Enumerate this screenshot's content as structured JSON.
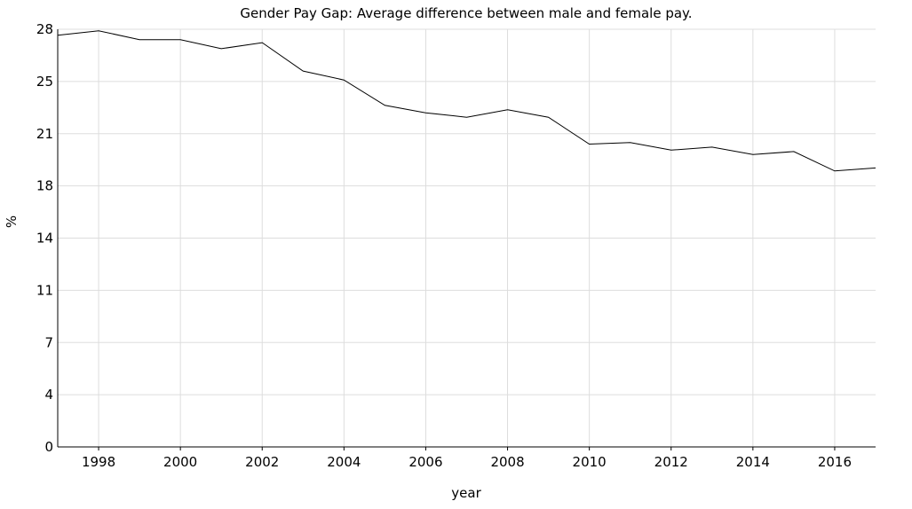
{
  "chart_data": {
    "type": "line",
    "title": "Gender Pay Gap: Average difference between male and female pay.",
    "xlabel": "year",
    "ylabel": "%",
    "xlim": [
      1997,
      2017
    ],
    "ylim": [
      0,
      28
    ],
    "x_ticks": [
      1998,
      2000,
      2002,
      2004,
      2006,
      2008,
      2010,
      2012,
      2014,
      2016
    ],
    "y_ticks": [
      0,
      3.5,
      7,
      10.5,
      14,
      17.5,
      21,
      24.5,
      28
    ],
    "y_tick_labels": [
      "0",
      "4",
      "7",
      "11",
      "14",
      "18",
      "21",
      "25",
      "28"
    ],
    "grid": true,
    "line_color": "#000000",
    "grid_color": "#dddddd",
    "series": [
      {
        "x": [
          1997,
          1998,
          1999,
          2000,
          2001,
          2002,
          2003,
          2004,
          2005,
          2006,
          2007,
          2008,
          2009,
          2010,
          2011,
          2012,
          2013,
          2014,
          2015,
          2016,
          2017
        ],
        "values": [
          27.6,
          27.9,
          27.3,
          27.3,
          26.7,
          27.1,
          25.2,
          24.6,
          22.9,
          22.4,
          22.1,
          22.6,
          22.1,
          20.3,
          20.4,
          19.9,
          20.1,
          19.6,
          19.8,
          18.5,
          18.7
        ]
      }
    ]
  }
}
